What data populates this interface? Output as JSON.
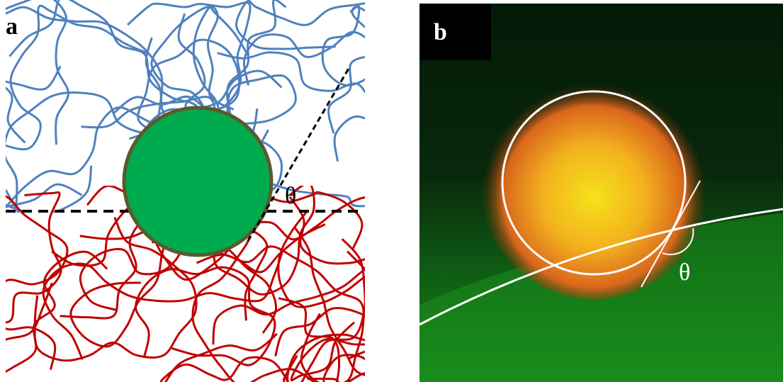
{
  "panels": [
    {
      "label": "a",
      "angle_label": "θ"
    },
    {
      "label": "b",
      "angle_label": "θ"
    }
  ]
}
